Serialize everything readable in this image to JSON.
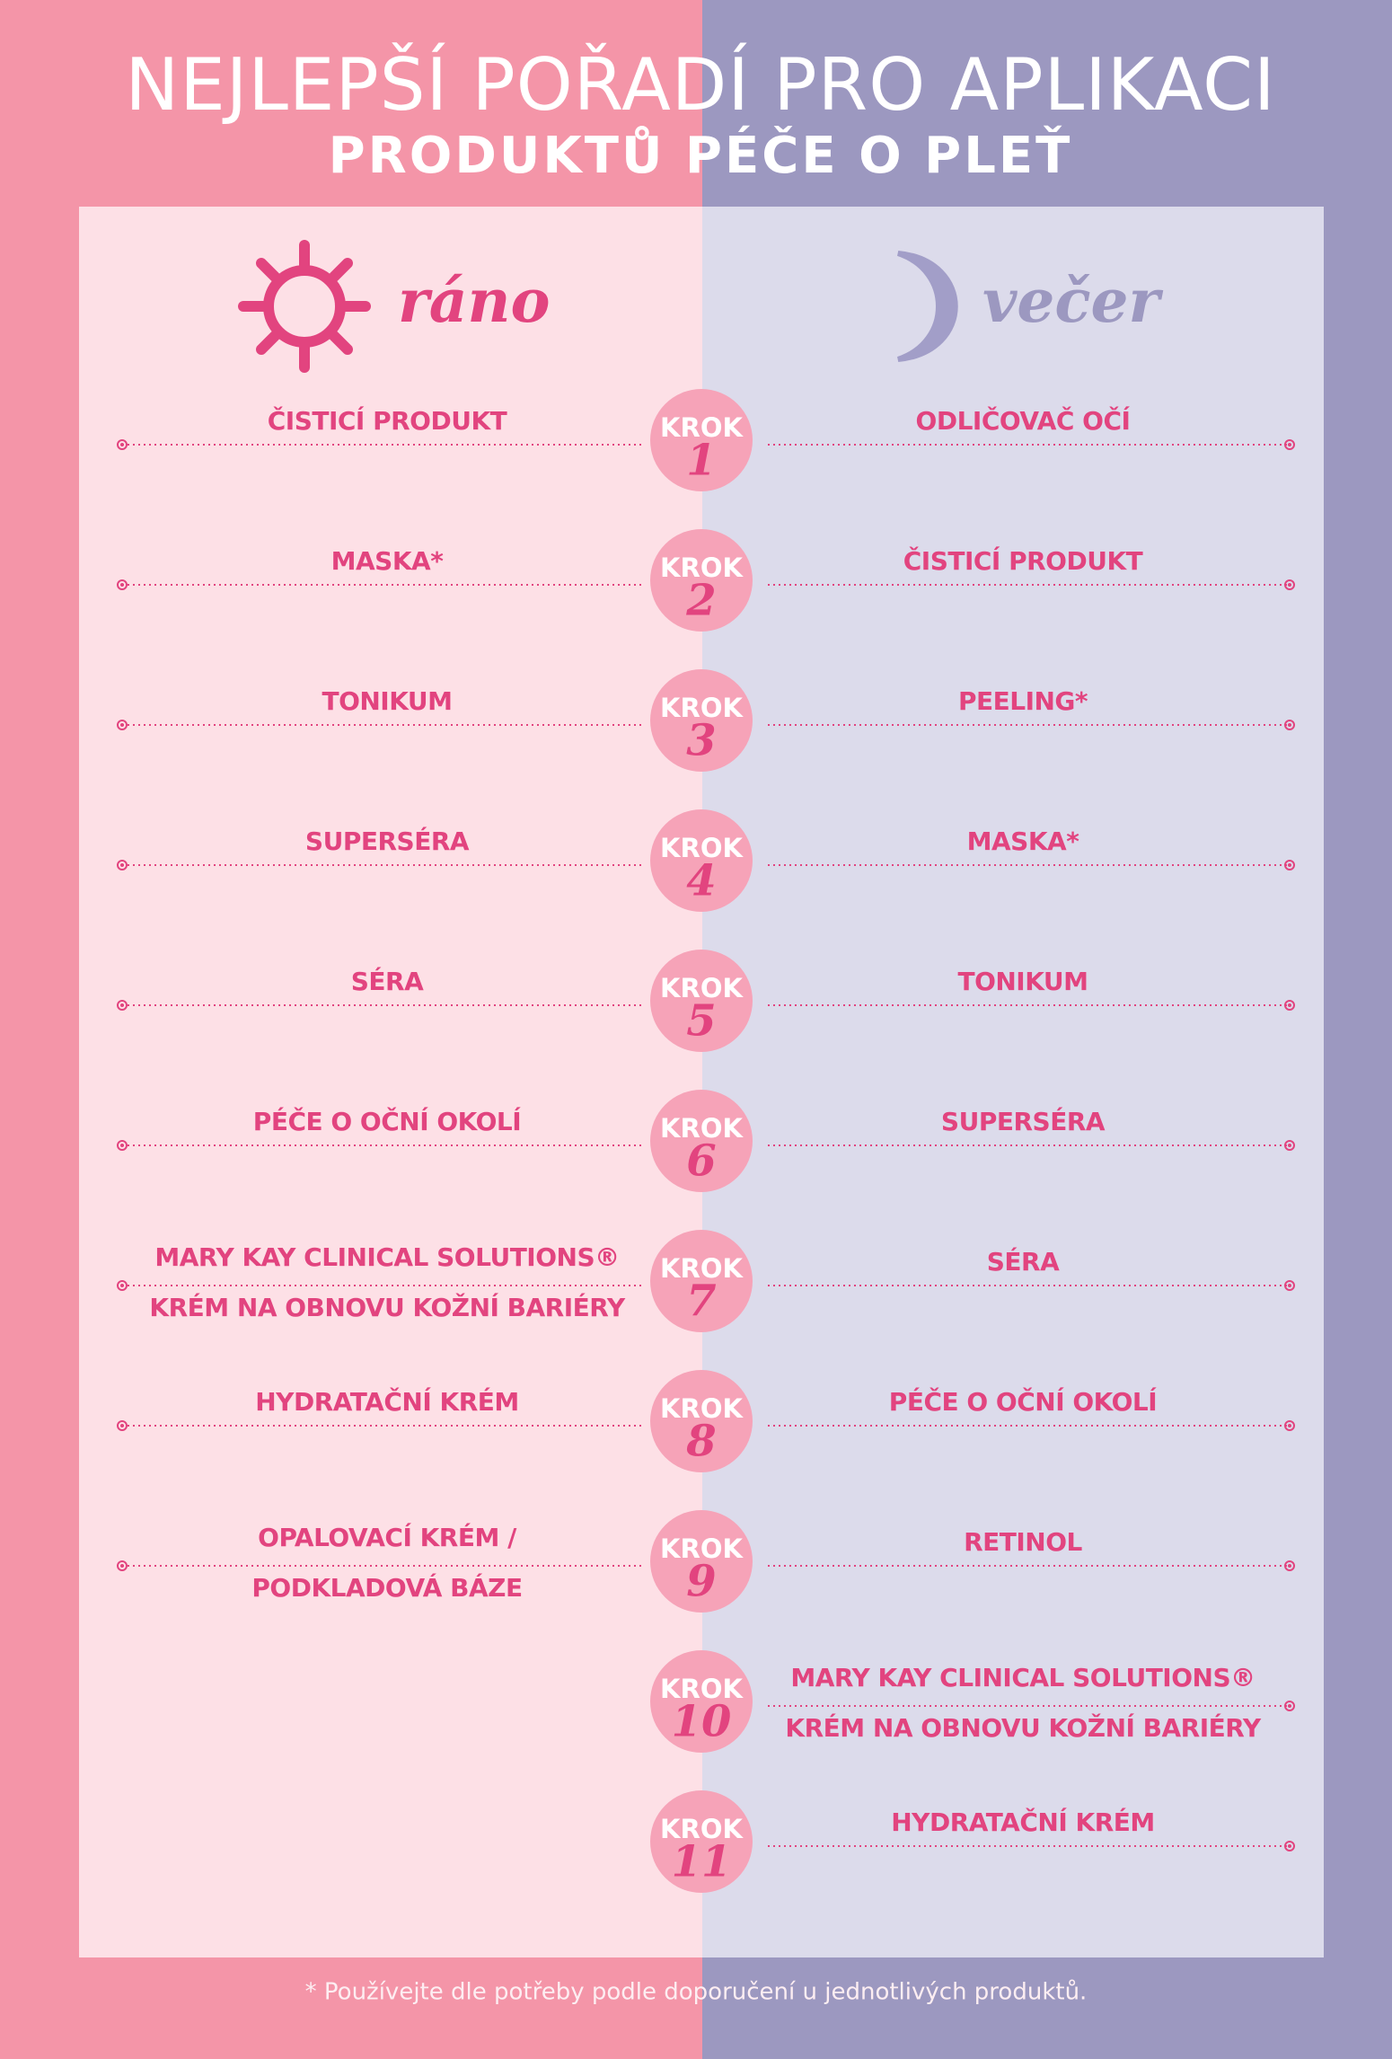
{
  "header": {
    "title": "NEJLEPŠÍ POŘADÍ PRO APLIKACI",
    "subtitle": "PRODUKTŮ PÉČE O PLEŤ"
  },
  "morning": {
    "label": "ráno",
    "items": [
      [
        "ČISTICÍ PRODUKT"
      ],
      [
        "MASKA*"
      ],
      [
        "TONIKUM"
      ],
      [
        "SUPERSÉRA"
      ],
      [
        "SÉRA"
      ],
      [
        "PÉČE O OČNÍ OKOLÍ"
      ],
      [
        "MARY KAY CLINICAL SOLUTIONS®",
        "KRÉM NA OBNOVU KOŽNÍ BARIÉRY"
      ],
      [
        "HYDRATAČNÍ KRÉM"
      ],
      [
        "OPALOVACÍ KRÉM /",
        "PODKLADOVÁ BÁZE"
      ]
    ]
  },
  "evening": {
    "label": "večer",
    "items": [
      [
        "ODLIČOVAČ OČÍ"
      ],
      [
        "ČISTICÍ PRODUKT"
      ],
      [
        "PEELING*"
      ],
      [
        "MASKA*"
      ],
      [
        "TONIKUM"
      ],
      [
        "SUPERSÉRA"
      ],
      [
        "SÉRA"
      ],
      [
        "PÉČE O OČNÍ OKOLÍ"
      ],
      [
        "RETINOL"
      ],
      [
        "MARY KAY CLINICAL SOLUTIONS®",
        "KRÉM NA OBNOVU KOŽNÍ BARIÉRY"
      ],
      [
        "HYDRATAČNÍ KRÉM"
      ]
    ]
  },
  "steps": [
    {
      "label": "KROK",
      "number": "1"
    },
    {
      "label": "KROK",
      "number": "2"
    },
    {
      "label": "KROK",
      "number": "3"
    },
    {
      "label": "KROK",
      "number": "4"
    },
    {
      "label": "KROK",
      "number": "5"
    },
    {
      "label": "KROK",
      "number": "6"
    },
    {
      "label": "KROK",
      "number": "7"
    },
    {
      "label": "KROK",
      "number": "8"
    },
    {
      "label": "KROK",
      "number": "9"
    },
    {
      "label": "KROK",
      "number": "10"
    },
    {
      "label": "KROK",
      "number": "11"
    }
  ],
  "footnote": "* Používejte dle potřeby podle doporučení u jednotlivých produktů."
}
